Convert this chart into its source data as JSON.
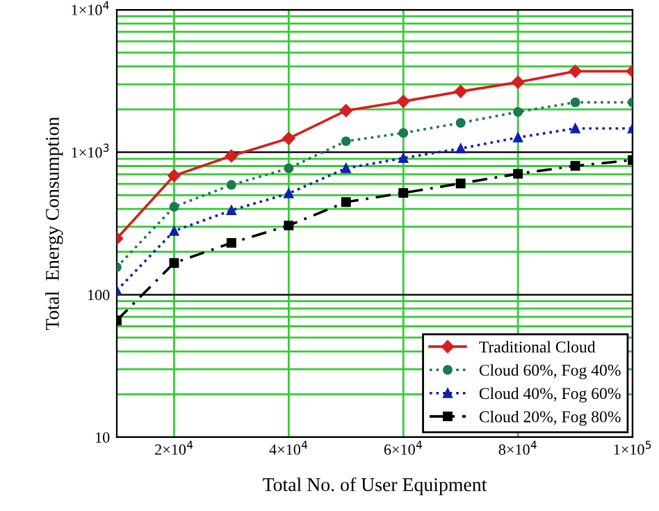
{
  "chart_data": {
    "type": "line",
    "xlabel": "Total No. of User Equipment",
    "ylabel": "Total  Energy Consumption",
    "x": [
      10000,
      20000,
      30000,
      40000,
      50000,
      60000,
      70000,
      80000,
      90000,
      100000
    ],
    "series": [
      {
        "name": "Traditional Cloud",
        "color": "#d42020",
        "marker": "diamond",
        "line_style": "solid",
        "values": [
          248,
          685,
          942,
          1250,
          1960,
          2275,
          2670,
          3100,
          3700,
          3700
        ]
      },
      {
        "name": "Cloud 60%, Fog 40%",
        "color": "#1a7a50",
        "marker": "circle",
        "line_style": "dotted",
        "values": [
          156,
          414,
          590,
          771,
          1195,
          1365,
          1607,
          1918,
          2240,
          2240
        ]
      },
      {
        "name": "Cloud 40%, Fog 60%",
        "color": "#1020b0",
        "marker": "triangle",
        "line_style": "dotted",
        "values": [
          107,
          280,
          391,
          514,
          771,
          910,
          1062,
          1269,
          1469,
          1469
        ]
      },
      {
        "name": "Cloud 20%, Fog 80%",
        "color": "#000000",
        "marker": "square",
        "line_style": "dashed",
        "values": [
          66,
          167,
          231,
          306,
          447,
          518,
          604,
          706,
          802,
          881
        ]
      }
    ],
    "log": "y",
    "xlim": [
      10000,
      100000
    ],
    "ylim": [
      10,
      10000
    ],
    "xticks": [
      {
        "value": 20000,
        "label": "2×10$^{4}$"
      },
      {
        "value": 40000,
        "label": "4×10$^{4}$"
      },
      {
        "value": 60000,
        "label": "6×10$^{4}$"
      },
      {
        "value": 80000,
        "label": "8×10$^{4}$"
      },
      {
        "value": 100000,
        "label": "1×10$^{5}$"
      }
    ],
    "yticks": [
      10,
      {
        "value": 20,
        "label": null
      },
      {
        "value": 30,
        "label": null
      },
      {
        "value": 40,
        "label": null
      },
      {
        "value": 50,
        "label": null
      },
      {
        "value": 60,
        "label": null
      },
      {
        "value": 70,
        "label": null
      },
      {
        "value": 80,
        "label": null
      },
      {
        "value": 90,
        "label": null
      },
      100,
      {
        "value": 200,
        "label": null
      },
      {
        "value": 300,
        "label": null
      },
      {
        "value": 400,
        "label": null
      },
      {
        "value": 500,
        "label": null
      },
      {
        "value": 600,
        "label": null
      },
      {
        "value": 700,
        "label": null
      },
      {
        "value": 800,
        "label": null
      },
      {
        "value": 900,
        "label": null
      },
      {
        "value": 1000,
        "label": "1×10$^{3}$"
      },
      {
        "value": 2000,
        "label": null
      },
      {
        "value": 3000,
        "label": null
      },
      {
        "value": 4000,
        "label": null
      },
      {
        "value": 5000,
        "label": null
      },
      {
        "value": 6000,
        "label": null
      },
      {
        "value": 7000,
        "label": null
      },
      {
        "value": 8000,
        "label": null
      },
      {
        "value": 9000,
        "label": null
      },
      {
        "value": 10000,
        "label": "1×10$^{4}$"
      }
    ],
    "grid": true,
    "legend": "bottom right"
  }
}
